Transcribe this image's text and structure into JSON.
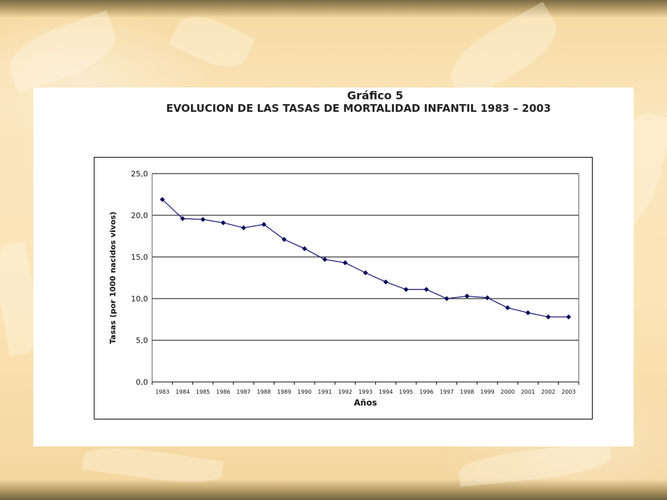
{
  "chart_data": {
    "type": "line",
    "title": "Gráfico 5",
    "subtitle": "EVOLUCION DE LAS TASAS DE MORTALIDAD INFANTIL  1983 – 2003",
    "xlabel": "Años",
    "ylabel": "Tasas (por 1000 nacidos vivos)",
    "ylim": [
      0,
      25
    ],
    "yticks": [
      "0,0",
      "5,0",
      "10,0",
      "15,0",
      "20,0",
      "25,0"
    ],
    "ytick_values": [
      0,
      5,
      10,
      15,
      20,
      25
    ],
    "grid": "horizontal",
    "legend": "none",
    "categories": [
      "1983",
      "1984",
      "1985",
      "1986",
      "1987",
      "1988",
      "1989",
      "1990",
      "1991",
      "1992",
      "1993",
      "1994",
      "1995",
      "1996",
      "1997",
      "1998",
      "1999",
      "2000",
      "2001",
      "2002",
      "2003"
    ],
    "series": [
      {
        "values": [
          21.9,
          19.6,
          19.5,
          19.1,
          18.5,
          18.9,
          17.1,
          16.0,
          14.7,
          14.3,
          13.1,
          12.0,
          11.1,
          11.1,
          10.0,
          10.3,
          10.1,
          8.9,
          8.3,
          7.8,
          7.8
        ]
      }
    ],
    "colors": {
      "line": "#1f1f7a",
      "marker": "#0a0a5c",
      "grid": "#000000"
    }
  }
}
